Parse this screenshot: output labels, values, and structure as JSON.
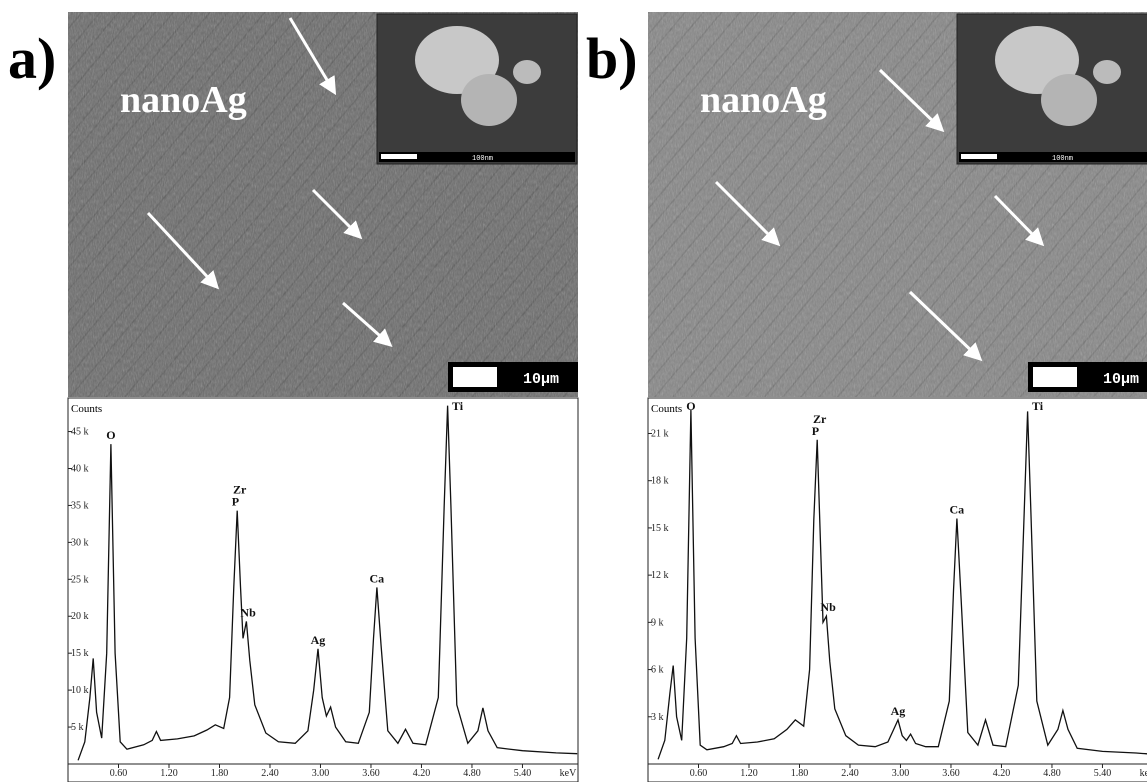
{
  "chart_data": [
    {
      "type": "line",
      "panel_label": "a)",
      "image_label": "nanoAg",
      "scale_bar": "10µm",
      "inset_scale_bar": "100nm",
      "y_label": "Counts",
      "x_label": "keV",
      "x": [
        0.12,
        0.2,
        0.26,
        0.3,
        0.34,
        0.4,
        0.46,
        0.51,
        0.56,
        0.62,
        0.7,
        0.9,
        1.0,
        1.05,
        1.1,
        1.3,
        1.5,
        1.65,
        1.75,
        1.85,
        1.92,
        1.97,
        2.01,
        2.05,
        2.08,
        2.12,
        2.16,
        2.22,
        2.35,
        2.5,
        2.7,
        2.85,
        2.92,
        2.97,
        3.02,
        3.07,
        3.12,
        3.18,
        3.3,
        3.45,
        3.58,
        3.63,
        3.67,
        3.72,
        3.8,
        3.92,
        4.01,
        4.1,
        4.25,
        4.4,
        4.47,
        4.51,
        4.55,
        4.62,
        4.75,
        4.87,
        4.93,
        4.99,
        5.1,
        5.4,
        5.8,
        6.05
      ],
      "values": [
        500,
        3000,
        9000,
        14300,
        7000,
        3500,
        15000,
        43300,
        15000,
        3000,
        2000,
        2600,
        3200,
        4400,
        3200,
        3400,
        3800,
        4600,
        5300,
        4800,
        9000,
        24000,
        34300,
        24000,
        17000,
        19300,
        14000,
        8000,
        4200,
        3000,
        2800,
        4500,
        10000,
        15600,
        9000,
        6500,
        7700,
        5000,
        3000,
        2800,
        7000,
        17000,
        23900,
        16000,
        4500,
        2800,
        4700,
        2800,
        2600,
        9000,
        35000,
        48500,
        35000,
        8000,
        2800,
        4500,
        7600,
        4500,
        2200,
        1800,
        1500,
        1400
      ],
      "color": "#111111",
      "xlim": [
        0,
        6.06
      ],
      "xticks": [
        {
          "value": 0.6,
          "label": "0.60"
        },
        {
          "value": 1.2,
          "label": "1.20"
        },
        {
          "value": 1.8,
          "label": "1.80"
        },
        {
          "value": 2.4,
          "label": "2.40"
        },
        {
          "value": 3.0,
          "label": "3.00"
        },
        {
          "value": 3.6,
          "label": "3.60"
        },
        {
          "value": 4.2,
          "label": "4.20"
        },
        {
          "value": 4.8,
          "label": "4.80"
        },
        {
          "value": 5.4,
          "label": "5.40"
        }
      ],
      "ylim": [
        0,
        49000
      ],
      "yticks": [
        {
          "value": 5000,
          "label": "5 k"
        },
        {
          "value": 10000,
          "label": "10 k"
        },
        {
          "value": 15000,
          "label": "15 k"
        },
        {
          "value": 20000,
          "label": "20 k"
        },
        {
          "value": 25000,
          "label": "25 k"
        },
        {
          "value": 30000,
          "label": "30 k"
        },
        {
          "value": 35000,
          "label": "35 k"
        },
        {
          "value": 40000,
          "label": "40 k"
        },
        {
          "value": 45000,
          "label": "45 k"
        }
      ],
      "annotations": [
        {
          "text": "O",
          "x": 0.51
        },
        {
          "text": "P",
          "x": 1.99
        },
        {
          "text": "Zr",
          "x": 2.04
        },
        {
          "text": "Nb",
          "x": 2.14
        },
        {
          "text": "Ag",
          "x": 2.97
        },
        {
          "text": "Ca",
          "x": 3.67
        },
        {
          "text": "Ti",
          "x": 4.51
        }
      ]
    },
    {
      "type": "line",
      "panel_label": "b)",
      "image_label": "nanoAg",
      "scale_bar": "10µm",
      "inset_scale_bar": "100nm",
      "y_label": "Counts",
      "x_label": "keV",
      "x": [
        0.12,
        0.2,
        0.26,
        0.3,
        0.34,
        0.4,
        0.46,
        0.51,
        0.56,
        0.62,
        0.7,
        0.9,
        1.0,
        1.05,
        1.1,
        1.3,
        1.5,
        1.65,
        1.75,
        1.85,
        1.92,
        1.97,
        2.01,
        2.05,
        2.08,
        2.12,
        2.16,
        2.22,
        2.35,
        2.5,
        2.7,
        2.85,
        2.92,
        2.97,
        3.02,
        3.07,
        3.12,
        3.18,
        3.3,
        3.45,
        3.58,
        3.63,
        3.67,
        3.72,
        3.8,
        3.92,
        4.01,
        4.1,
        4.25,
        4.4,
        4.47,
        4.51,
        4.55,
        4.62,
        4.75,
        4.87,
        4.93,
        4.99,
        5.1,
        5.4,
        5.8,
        6.05
      ],
      "values": [
        300,
        1500,
        4500,
        6250,
        3000,
        1500,
        8000,
        22500,
        8000,
        1200,
        900,
        1100,
        1300,
        1800,
        1300,
        1400,
        1600,
        2200,
        2800,
        2400,
        6000,
        15500,
        20600,
        14000,
        9000,
        9400,
        6500,
        3500,
        1800,
        1200,
        1100,
        1400,
        2200,
        2800,
        1800,
        1500,
        1900,
        1300,
        1100,
        1100,
        4000,
        11000,
        15600,
        10500,
        2000,
        1200,
        2800,
        1200,
        1100,
        5000,
        16000,
        22400,
        16000,
        4000,
        1200,
        2200,
        3400,
        2200,
        1000,
        800,
        700,
        600
      ],
      "color": "#111111",
      "xlim": [
        0,
        6.06
      ],
      "xticks": [
        {
          "value": 0.6,
          "label": "0.60"
        },
        {
          "value": 1.2,
          "label": "1.20"
        },
        {
          "value": 1.8,
          "label": "1.80"
        },
        {
          "value": 2.4,
          "label": "2.40"
        },
        {
          "value": 3.0,
          "label": "3.00"
        },
        {
          "value": 3.6,
          "label": "3.60"
        },
        {
          "value": 4.2,
          "label": "4.20"
        },
        {
          "value": 4.8,
          "label": "4.80"
        },
        {
          "value": 5.4,
          "label": "5.40"
        }
      ],
      "ylim": [
        0,
        23000
      ],
      "yticks": [
        {
          "value": 3000,
          "label": "3 k"
        },
        {
          "value": 6000,
          "label": "6 k"
        },
        {
          "value": 9000,
          "label": "9 k"
        },
        {
          "value": 12000,
          "label": "12 k"
        },
        {
          "value": 15000,
          "label": "15 k"
        },
        {
          "value": 18000,
          "label": "18 k"
        },
        {
          "value": 21000,
          "label": "21 k"
        }
      ],
      "annotations": [
        {
          "text": "O",
          "x": 0.51
        },
        {
          "text": "P",
          "x": 1.99
        },
        {
          "text": "Zr",
          "x": 2.04
        },
        {
          "text": "Nb",
          "x": 2.14
        },
        {
          "text": "Ag",
          "x": 2.97
        },
        {
          "text": "Ca",
          "x": 3.67
        },
        {
          "text": "Ti",
          "x": 4.51
        }
      ]
    }
  ]
}
